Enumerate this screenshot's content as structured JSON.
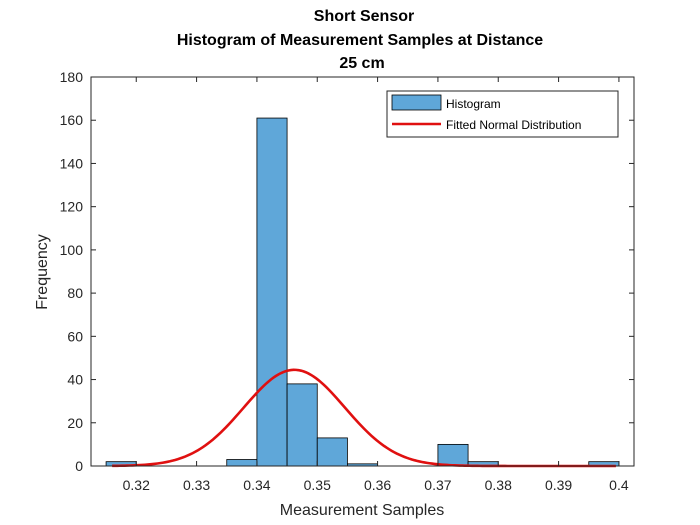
{
  "chart_data": {
    "type": "bar",
    "title_lines": [
      "Short Sensor",
      "Histogram of Measurement Samples at Distance",
      "25 cm"
    ],
    "xlabel": "Measurement Samples",
    "ylabel": "Frequency",
    "xlim": [
      0.3125,
      0.4025
    ],
    "ylim": [
      0,
      180
    ],
    "xticks": [
      0.32,
      0.33,
      0.34,
      0.35,
      0.36,
      0.37,
      0.38,
      0.39,
      0.4
    ],
    "xtick_labels": [
      "0.32",
      "0.33",
      "0.34",
      "0.35",
      "0.36",
      "0.37",
      "0.38",
      "0.39",
      "0.4"
    ],
    "yticks": [
      0,
      20,
      40,
      60,
      80,
      100,
      120,
      140,
      160,
      180
    ],
    "ytick_labels": [
      "0",
      "20",
      "40",
      "60",
      "80",
      "100",
      "120",
      "140",
      "160",
      "180"
    ],
    "grid": false,
    "legend_position": "top-right",
    "bin_width": 0.005,
    "series": [
      {
        "name": "Histogram",
        "type": "histogram",
        "color": "#5fa7d9",
        "bin_edges": [
          0.315,
          0.32,
          0.325,
          0.33,
          0.335,
          0.34,
          0.345,
          0.35,
          0.355,
          0.36,
          0.365,
          0.37,
          0.375,
          0.38,
          0.385,
          0.39,
          0.395,
          0.4
        ],
        "counts": [
          2,
          0,
          0,
          0,
          3,
          161,
          38,
          13,
          1,
          0,
          0,
          10,
          2,
          0,
          0,
          0,
          2
        ]
      },
      {
        "name": "Fitted Normal Distribution",
        "type": "line",
        "color": "#e01010",
        "mean": 0.3462,
        "peak": 44.5,
        "sd": 0.0084,
        "x_range": [
          0.316,
          0.3995
        ]
      }
    ]
  }
}
